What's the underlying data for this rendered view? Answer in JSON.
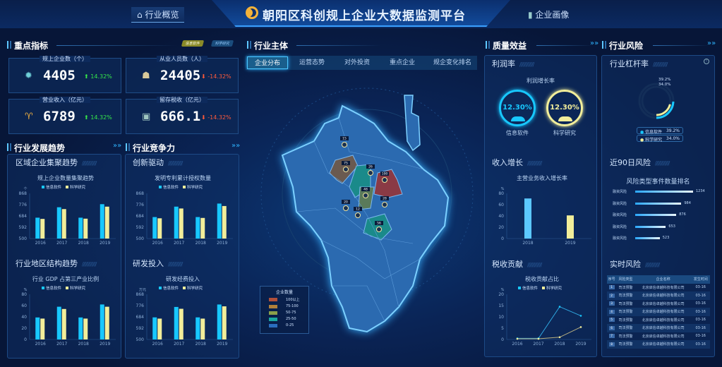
{
  "header": {
    "title": "朝阳区科创规上企业大数据监测平台",
    "nav_left": "行业概览",
    "nav_right": "企业画像"
  },
  "left": {
    "section1": "重点指标",
    "toggle": [
      "信息软件",
      "科学研究"
    ],
    "kpis": [
      {
        "label": "规上企业数（个）",
        "value": "4405",
        "change": "14.32%",
        "dir": "up",
        "icon": "gear-icon"
      },
      {
        "label": "从业人员数（人）",
        "value": "24405",
        "change": "-14.32%",
        "dir": "down",
        "icon": "people-icon"
      },
      {
        "label": "营业收入（亿元）",
        "value": "6789",
        "change": "14.32%",
        "dir": "up",
        "icon": "trophy-icon"
      },
      {
        "label": "留存税收（亿元）",
        "value": "666.1",
        "change": "-14.32%",
        "dir": "down",
        "icon": "coin-stack-icon"
      }
    ],
    "section2": "行业发展趋势",
    "section3": "行业竞争力",
    "sub1": "区域企业集聚趋势",
    "sub2": "创新驱动",
    "sub3": "行业地区结构趋势",
    "sub4": "研发投入"
  },
  "center": {
    "section": "行业主体",
    "tabs": [
      "企业分布",
      "运营态势",
      "对外投资",
      "重点企业",
      "规企变化排名"
    ],
    "active_tab": 0,
    "map_markers": [
      "15",
      "75",
      "26",
      "100",
      "48",
      "28",
      "20",
      "12",
      "56"
    ],
    "legend": {
      "title": "企业数量",
      "items": [
        {
          "label": "100以上",
          "color": "#b0503a"
        },
        {
          "label": "75-100",
          "color": "#b0803a"
        },
        {
          "label": "50-75",
          "color": "#8aa04a"
        },
        {
          "label": "25-50",
          "color": "#1aa8a0"
        },
        {
          "label": "0-25",
          "color": "#2a6ec0"
        }
      ]
    }
  },
  "right": {
    "section1": "质量效益",
    "section2": "行业风险",
    "profit": {
      "sub": "利润率",
      "title": "利润增长率",
      "items": [
        {
          "value": "12.30%",
          "label": "信息软件",
          "color": "#18c8ff"
        },
        {
          "value": "12.30%",
          "label": "科学研究",
          "color": "#f2ee9a"
        }
      ]
    },
    "income_sub": "收入增长",
    "tax_sub": "税收贡献",
    "leverage": {
      "sub": "行业杠杆率",
      "items": [
        {
          "label": "信息软件",
          "value": "39.2%",
          "pct": 39.2,
          "color": "#18c8ff"
        },
        {
          "label": "科学研究",
          "value": "34.0%",
          "pct": 34.0,
          "color": "#f2ee9a"
        }
      ]
    },
    "risk90": {
      "sub": "近90日风险",
      "title": "风险类型事件数量排名",
      "items": [
        {
          "label": "融资风险",
          "value": 1234
        },
        {
          "label": "融资风险",
          "value": 984
        },
        {
          "label": "融资风险",
          "value": 876
        },
        {
          "label": "融资风险",
          "value": 653
        },
        {
          "label": "融资风险",
          "value": 523
        }
      ]
    },
    "realtime": {
      "sub": "实时风险",
      "headers": [
        "序号",
        "风险类型",
        "企业名称",
        "发生时间"
      ],
      "rows": [
        [
          "1",
          "司法预警",
          "北京启信卓越科技有限公司",
          "03-16"
        ],
        [
          "2",
          "司法预警",
          "北京启信卓越科技有限公司",
          "03-16"
        ],
        [
          "3",
          "司法预警",
          "北京启信卓越科技有限公司",
          "03-16"
        ],
        [
          "4",
          "司法预警",
          "北京启信卓越科技有限公司",
          "03-16"
        ],
        [
          "5",
          "司法预警",
          "北京启信卓越科技有限公司",
          "03-16"
        ],
        [
          "6",
          "司法预警",
          "北京启信卓越科技有限公司",
          "03-16"
        ],
        [
          "7",
          "司法预警",
          "北京启信卓越科技有限公司",
          "03-16"
        ],
        [
          "8",
          "司法预警",
          "北京启信卓越科技有限公司",
          "03-16"
        ]
      ]
    }
  },
  "colors": {
    "series1": "#18c8ff",
    "series2": "#f2ee9a",
    "accent": "#2fb4ff",
    "up": "#35e84a",
    "down": "#ff5a3a"
  },
  "chart_data": [
    {
      "id": "c1",
      "type": "bar",
      "title": "规上企业数量集聚趋势",
      "unit": "个",
      "categories": [
        "2016",
        "2017",
        "2018",
        "2019"
      ],
      "yticks": [
        500,
        592,
        684,
        776,
        868
      ],
      "ylim": [
        500,
        868
      ],
      "series": [
        {
          "name": "信息软件",
          "values": [
            670,
            755,
            670,
            780
          ]
        },
        {
          "name": "科学研究",
          "values": [
            660,
            740,
            662,
            760
          ]
        }
      ]
    },
    {
      "id": "c2",
      "type": "bar",
      "title": "发明专利累计授权数量",
      "unit": "",
      "categories": [
        "2016",
        "2017",
        "2018",
        "2019"
      ],
      "yticks": [
        500,
        592,
        684,
        776,
        868
      ],
      "ylim": [
        500,
        868
      ],
      "series": [
        {
          "name": "信息软件",
          "values": [
            675,
            760,
            675,
            785
          ]
        },
        {
          "name": "科学研究",
          "values": [
            665,
            745,
            668,
            765
          ]
        }
      ]
    },
    {
      "id": "c3",
      "type": "bar",
      "title": "行业 GDP 占第三产业比例",
      "unit": "%",
      "categories": [
        "2016",
        "2017",
        "2018",
        "2019"
      ],
      "yticks": [
        0,
        20,
        40,
        60,
        80
      ],
      "ylim": [
        0,
        80
      ],
      "series": [
        {
          "name": "信息软件",
          "values": [
            39,
            58,
            39,
            62
          ]
        },
        {
          "name": "科学研究",
          "values": [
            37,
            54,
            37,
            58
          ]
        }
      ]
    },
    {
      "id": "c4",
      "type": "bar",
      "title": "研发经费投入",
      "unit": "万元",
      "categories": [
        "2016",
        "2017",
        "2018",
        "2019"
      ],
      "yticks": [
        500,
        592,
        684,
        776,
        868
      ],
      "ylim": [
        500,
        868
      ],
      "series": [
        {
          "name": "信息软件",
          "values": [
            680,
            765,
            680,
            785
          ]
        },
        {
          "name": "科学研究",
          "values": [
            670,
            750,
            670,
            770
          ]
        }
      ]
    },
    {
      "id": "c5",
      "type": "bar",
      "title": "主营业务收入增长率",
      "unit": "%",
      "categories": [
        "2018",
        "2019"
      ],
      "yticks": [
        0,
        20,
        40,
        60,
        80
      ],
      "ylim": [
        0,
        80
      ],
      "values": [
        71,
        41
      ],
      "colors": [
        "#5cc8ff",
        "#f2ee9a"
      ]
    },
    {
      "id": "c6",
      "type": "line",
      "title": "税收贡献占比",
      "unit": "%",
      "categories": [
        "2016",
        "2017",
        "2018",
        "2019"
      ],
      "yticks": [
        0,
        5,
        10,
        15,
        20
      ],
      "ylim": [
        0,
        20
      ],
      "series": [
        {
          "name": "信息软件",
          "values": [
            0.5,
            0.5,
            14.5,
            10.5
          ]
        },
        {
          "name": "科学研究",
          "values": [
            0.3,
            0.3,
            1,
            5.5
          ]
        }
      ]
    }
  ]
}
